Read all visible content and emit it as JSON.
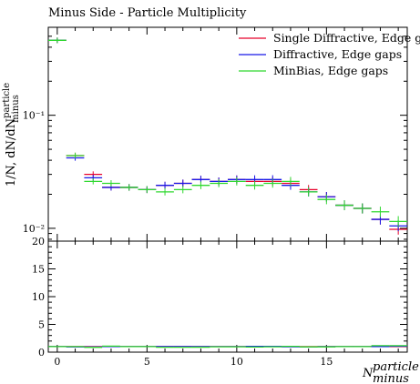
{
  "title": "Minus Side - Particle Multiplicity",
  "ylabel": "1/N, dN/dN",
  "ylabel_super": "particle",
  "ylabel_sub": "minus",
  "xlabel": "N",
  "xlabel_super": "particle",
  "xlabel_sub": "minus",
  "chart_data": [
    {
      "type": "line",
      "scale": "log",
      "ylim": [
        0.0077,
        0.6
      ],
      "xlim": [
        -0.5,
        19.5
      ],
      "yticks": [
        {
          "value": 0.1,
          "label": "10⁻¹"
        },
        {
          "value": 0.01,
          "label": "10⁻²"
        }
      ],
      "legend_position": "top-right",
      "x": [
        0,
        1,
        2,
        3,
        4,
        5,
        6,
        7,
        8,
        9,
        10,
        11,
        12,
        13,
        14,
        15,
        16,
        17,
        18,
        19
      ],
      "series": [
        {
          "name": "Single Diffractive, Edge gaps",
          "color": "#e8002a",
          "values": [
            0.46,
            0.044,
            0.03,
            0.023,
            0.023,
            0.022,
            0.024,
            0.025,
            0.027,
            0.026,
            0.027,
            0.026,
            0.026,
            0.025,
            0.022,
            0.019,
            0.016,
            0.015,
            0.012,
            0.0098
          ]
        },
        {
          "name": "Diffractive, Edge gaps",
          "color": "#1818e8",
          "values": [
            0.46,
            0.042,
            0.028,
            0.023,
            0.023,
            0.022,
            0.024,
            0.025,
            0.027,
            0.026,
            0.027,
            0.027,
            0.027,
            0.024,
            0.021,
            0.019,
            0.016,
            0.015,
            0.012,
            0.0105
          ]
        },
        {
          "name": "MinBias, Edge gaps",
          "color": "#2ed82e",
          "values": [
            0.46,
            0.044,
            0.026,
            0.025,
            0.023,
            0.022,
            0.021,
            0.022,
            0.024,
            0.025,
            0.026,
            0.024,
            0.025,
            0.026,
            0.021,
            0.018,
            0.016,
            0.015,
            0.014,
            0.0115
          ]
        }
      ]
    },
    {
      "type": "line",
      "role": "ratio",
      "ylim": [
        0,
        20
      ],
      "xlim": [
        -0.5,
        19.5
      ],
      "yticks": [
        0,
        5,
        10,
        15,
        20
      ],
      "xticks": [
        0,
        5,
        10,
        15
      ],
      "x": [
        0,
        1,
        2,
        3,
        4,
        5,
        6,
        7,
        8,
        9,
        10,
        11,
        12,
        13,
        14,
        15,
        16,
        17,
        18,
        19
      ],
      "series": [
        {
          "color": "#e8002a",
          "values": [
            1,
            1,
            1,
            1,
            1,
            1,
            1,
            1,
            1,
            1,
            1,
            1,
            1,
            1,
            1,
            1,
            1,
            1,
            1,
            1
          ]
        },
        {
          "color": "#1818e8",
          "values": [
            1,
            0.95,
            0.93,
            1,
            1,
            1,
            1,
            1,
            1,
            1,
            1,
            1.04,
            1.04,
            0.96,
            0.95,
            1,
            1,
            1,
            1,
            1.07
          ]
        },
        {
          "color": "#2ed82e",
          "values": [
            1,
            1,
            0.87,
            1.09,
            1,
            1,
            0.88,
            0.88,
            0.89,
            0.96,
            0.96,
            0.92,
            0.96,
            1.04,
            0.95,
            0.95,
            1,
            1,
            1.17,
            1.17
          ]
        }
      ]
    }
  ]
}
